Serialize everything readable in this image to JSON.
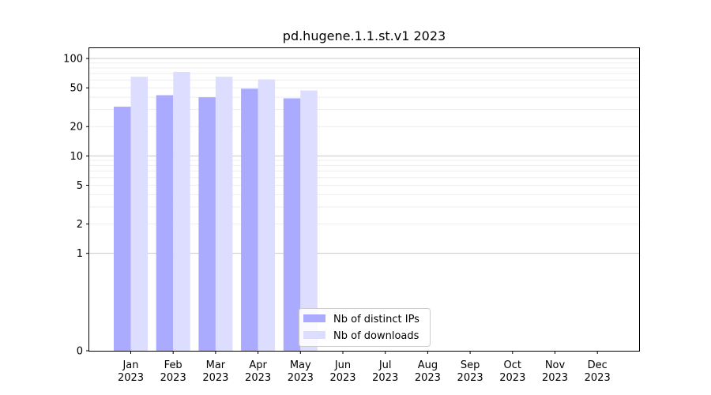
{
  "chart_data": {
    "type": "bar",
    "title": "pd.hugene.1.1.st.v1 2023",
    "xlabel": "",
    "ylabel": "",
    "y_scale": "symlog",
    "ylim": [
      0,
      130
    ],
    "y_ticks": [
      0,
      1,
      2,
      5,
      10,
      20,
      50,
      100
    ],
    "grid": true,
    "legend_position": "lower-center",
    "categories": [
      {
        "month": "Jan",
        "year": "2023"
      },
      {
        "month": "Feb",
        "year": "2023"
      },
      {
        "month": "Mar",
        "year": "2023"
      },
      {
        "month": "Apr",
        "year": "2023"
      },
      {
        "month": "May",
        "year": "2023"
      },
      {
        "month": "Jun",
        "year": "2023"
      },
      {
        "month": "Jul",
        "year": "2023"
      },
      {
        "month": "Aug",
        "year": "2023"
      },
      {
        "month": "Sep",
        "year": "2023"
      },
      {
        "month": "Oct",
        "year": "2023"
      },
      {
        "month": "Nov",
        "year": "2023"
      },
      {
        "month": "Dec",
        "year": "2023"
      }
    ],
    "series": [
      {
        "name": "Nb of distinct IPs",
        "color": "#aaaaff",
        "values": [
          32,
          42,
          40,
          49,
          39,
          null,
          null,
          null,
          null,
          null,
          null,
          null
        ]
      },
      {
        "name": "Nb of downloads",
        "color": "#ddddff",
        "values": [
          65,
          73,
          65,
          61,
          47,
          null,
          null,
          null,
          null,
          null,
          null,
          null
        ]
      }
    ]
  }
}
